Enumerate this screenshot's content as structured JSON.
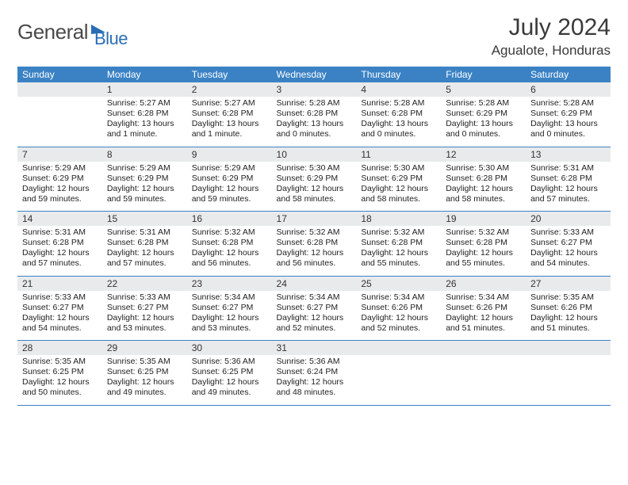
{
  "logo": {
    "text1": "General",
    "text2": "Blue"
  },
  "title": "July 2024",
  "location": "Agualote, Honduras",
  "colors": {
    "header_bg": "#3b82c4",
    "header_text": "#ffffff",
    "daynum_bg": "#e9eaeb",
    "rule": "#3b82c4",
    "page_bg": "#ffffff",
    "body_text": "#222222",
    "title_text": "#3a3a3a",
    "logo_gray": "#4a4a4a",
    "logo_blue": "#2a6db5"
  },
  "typography": {
    "title_fontsize": 30,
    "location_fontsize": 17,
    "logo_fontsize": 26,
    "dow_fontsize": 12,
    "daynum_fontsize": 12,
    "cell_fontsize": 10.5
  },
  "days_of_week": [
    "Sunday",
    "Monday",
    "Tuesday",
    "Wednesday",
    "Thursday",
    "Friday",
    "Saturday"
  ],
  "weeks": [
    [
      null,
      {
        "n": "1",
        "sr": "5:27 AM",
        "ss": "6:28 PM",
        "dl": "13 hours and 1 minute."
      },
      {
        "n": "2",
        "sr": "5:27 AM",
        "ss": "6:28 PM",
        "dl": "13 hours and 1 minute."
      },
      {
        "n": "3",
        "sr": "5:28 AM",
        "ss": "6:28 PM",
        "dl": "13 hours and 0 minutes."
      },
      {
        "n": "4",
        "sr": "5:28 AM",
        "ss": "6:28 PM",
        "dl": "13 hours and 0 minutes."
      },
      {
        "n": "5",
        "sr": "5:28 AM",
        "ss": "6:29 PM",
        "dl": "13 hours and 0 minutes."
      },
      {
        "n": "6",
        "sr": "5:28 AM",
        "ss": "6:29 PM",
        "dl": "13 hours and 0 minutes."
      }
    ],
    [
      {
        "n": "7",
        "sr": "5:29 AM",
        "ss": "6:29 PM",
        "dl": "12 hours and 59 minutes."
      },
      {
        "n": "8",
        "sr": "5:29 AM",
        "ss": "6:29 PM",
        "dl": "12 hours and 59 minutes."
      },
      {
        "n": "9",
        "sr": "5:29 AM",
        "ss": "6:29 PM",
        "dl": "12 hours and 59 minutes."
      },
      {
        "n": "10",
        "sr": "5:30 AM",
        "ss": "6:29 PM",
        "dl": "12 hours and 58 minutes."
      },
      {
        "n": "11",
        "sr": "5:30 AM",
        "ss": "6:29 PM",
        "dl": "12 hours and 58 minutes."
      },
      {
        "n": "12",
        "sr": "5:30 AM",
        "ss": "6:28 PM",
        "dl": "12 hours and 58 minutes."
      },
      {
        "n": "13",
        "sr": "5:31 AM",
        "ss": "6:28 PM",
        "dl": "12 hours and 57 minutes."
      }
    ],
    [
      {
        "n": "14",
        "sr": "5:31 AM",
        "ss": "6:28 PM",
        "dl": "12 hours and 57 minutes."
      },
      {
        "n": "15",
        "sr": "5:31 AM",
        "ss": "6:28 PM",
        "dl": "12 hours and 57 minutes."
      },
      {
        "n": "16",
        "sr": "5:32 AM",
        "ss": "6:28 PM",
        "dl": "12 hours and 56 minutes."
      },
      {
        "n": "17",
        "sr": "5:32 AM",
        "ss": "6:28 PM",
        "dl": "12 hours and 56 minutes."
      },
      {
        "n": "18",
        "sr": "5:32 AM",
        "ss": "6:28 PM",
        "dl": "12 hours and 55 minutes."
      },
      {
        "n": "19",
        "sr": "5:32 AM",
        "ss": "6:28 PM",
        "dl": "12 hours and 55 minutes."
      },
      {
        "n": "20",
        "sr": "5:33 AM",
        "ss": "6:27 PM",
        "dl": "12 hours and 54 minutes."
      }
    ],
    [
      {
        "n": "21",
        "sr": "5:33 AM",
        "ss": "6:27 PM",
        "dl": "12 hours and 54 minutes."
      },
      {
        "n": "22",
        "sr": "5:33 AM",
        "ss": "6:27 PM",
        "dl": "12 hours and 53 minutes."
      },
      {
        "n": "23",
        "sr": "5:34 AM",
        "ss": "6:27 PM",
        "dl": "12 hours and 53 minutes."
      },
      {
        "n": "24",
        "sr": "5:34 AM",
        "ss": "6:27 PM",
        "dl": "12 hours and 52 minutes."
      },
      {
        "n": "25",
        "sr": "5:34 AM",
        "ss": "6:26 PM",
        "dl": "12 hours and 52 minutes."
      },
      {
        "n": "26",
        "sr": "5:34 AM",
        "ss": "6:26 PM",
        "dl": "12 hours and 51 minutes."
      },
      {
        "n": "27",
        "sr": "5:35 AM",
        "ss": "6:26 PM",
        "dl": "12 hours and 51 minutes."
      }
    ],
    [
      {
        "n": "28",
        "sr": "5:35 AM",
        "ss": "6:25 PM",
        "dl": "12 hours and 50 minutes."
      },
      {
        "n": "29",
        "sr": "5:35 AM",
        "ss": "6:25 PM",
        "dl": "12 hours and 49 minutes."
      },
      {
        "n": "30",
        "sr": "5:36 AM",
        "ss": "6:25 PM",
        "dl": "12 hours and 49 minutes."
      },
      {
        "n": "31",
        "sr": "5:36 AM",
        "ss": "6:24 PM",
        "dl": "12 hours and 48 minutes."
      },
      null,
      null,
      null
    ]
  ],
  "labels": {
    "sunrise": "Sunrise:",
    "sunset": "Sunset:",
    "daylight": "Daylight:"
  }
}
